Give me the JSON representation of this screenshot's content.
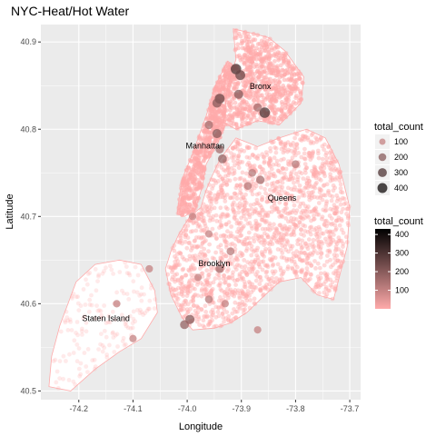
{
  "chart_data": {
    "type": "scatter",
    "title": "NYC-Heat/Hot Water",
    "xlabel": "Longitude",
    "ylabel": "Latitude",
    "xlim": [
      -74.27,
      -73.68
    ],
    "ylim": [
      40.49,
      40.92
    ],
    "x_ticks": [
      -74.2,
      -74.1,
      -74.0,
      -73.9,
      -73.8,
      -73.7
    ],
    "x_tick_labels": [
      "-74.2",
      "-74.1",
      "-74.0",
      "-73.9",
      "-73.8",
      "-73.7"
    ],
    "y_ticks": [
      40.5,
      40.6,
      40.7,
      40.8,
      40.9
    ],
    "y_tick_labels": [
      "40.5",
      "40.6",
      "40.7",
      "40.8",
      "40.9"
    ],
    "grid": true,
    "background": "#ebebeb",
    "boroughs": [
      {
        "name": "Bronx",
        "lon": -73.865,
        "lat": 40.846
      },
      {
        "name": "Manhattan",
        "lon": -73.967,
        "lat": 40.778
      },
      {
        "name": "Queens",
        "lon": -73.825,
        "lat": 40.718
      },
      {
        "name": "Brooklyn",
        "lon": -73.95,
        "lat": 40.643
      },
      {
        "name": "Staten Island",
        "lon": -74.15,
        "lat": 40.58
      }
    ],
    "highlight_points": [
      {
        "lon": -73.91,
        "lat": 40.869,
        "count": 300
      },
      {
        "lon": -73.902,
        "lat": 40.862,
        "count": 250
      },
      {
        "lon": -73.905,
        "lat": 40.84,
        "count": 200
      },
      {
        "lon": -73.94,
        "lat": 40.835,
        "count": 250
      },
      {
        "lon": -73.945,
        "lat": 40.83,
        "count": 200
      },
      {
        "lon": -73.857,
        "lat": 40.819,
        "count": 300
      },
      {
        "lon": -73.87,
        "lat": 40.825,
        "count": 150
      },
      {
        "lon": -73.96,
        "lat": 40.805,
        "count": 150
      },
      {
        "lon": -73.945,
        "lat": 40.795,
        "count": 200
      },
      {
        "lon": -73.94,
        "lat": 40.777,
        "count": 150
      },
      {
        "lon": -73.935,
        "lat": 40.766,
        "count": 180
      },
      {
        "lon": -73.88,
        "lat": 40.75,
        "count": 120
      },
      {
        "lon": -73.865,
        "lat": 40.742,
        "count": 150
      },
      {
        "lon": -73.888,
        "lat": 40.735,
        "count": 120
      },
      {
        "lon": -73.8,
        "lat": 40.76,
        "count": 120
      },
      {
        "lon": -73.99,
        "lat": 40.7,
        "count": 100
      },
      {
        "lon": -73.96,
        "lat": 40.68,
        "count": 100
      },
      {
        "lon": -73.92,
        "lat": 40.66,
        "count": 120
      },
      {
        "lon": -73.94,
        "lat": 40.64,
        "count": 150
      },
      {
        "lon": -73.98,
        "lat": 40.63,
        "count": 100
      },
      {
        "lon": -73.96,
        "lat": 40.605,
        "count": 120
      },
      {
        "lon": -73.995,
        "lat": 40.582,
        "count": 200
      },
      {
        "lon": -74.005,
        "lat": 40.576,
        "count": 180
      },
      {
        "lon": -73.93,
        "lat": 40.6,
        "count": 100
      },
      {
        "lon": -73.87,
        "lat": 40.57,
        "count": 100
      },
      {
        "lon": -74.07,
        "lat": 40.64,
        "count": 100
      },
      {
        "lon": -74.13,
        "lat": 40.6,
        "count": 100
      },
      {
        "lon": -74.1,
        "lat": 40.56,
        "count": 100
      }
    ],
    "legend_size": {
      "title": "total_count",
      "entries": [
        {
          "label": "100",
          "value": 100
        },
        {
          "label": "200",
          "value": 200
        },
        {
          "label": "300",
          "value": 300
        },
        {
          "label": "400",
          "value": 400
        }
      ]
    },
    "legend_color": {
      "title": "total_count",
      "low_color": "#ffaaaa",
      "high_color": "#000000",
      "range": [
        0,
        430
      ],
      "ticks": [
        {
          "label": "100",
          "value": 100
        },
        {
          "label": "200",
          "value": 200
        },
        {
          "label": "300",
          "value": 300
        },
        {
          "label": "400",
          "value": 400
        }
      ]
    },
    "colors": {
      "land_fill": "#ffffff",
      "land_outline": "#ffaaaa",
      "point_fill": "#ffaaaa"
    }
  }
}
